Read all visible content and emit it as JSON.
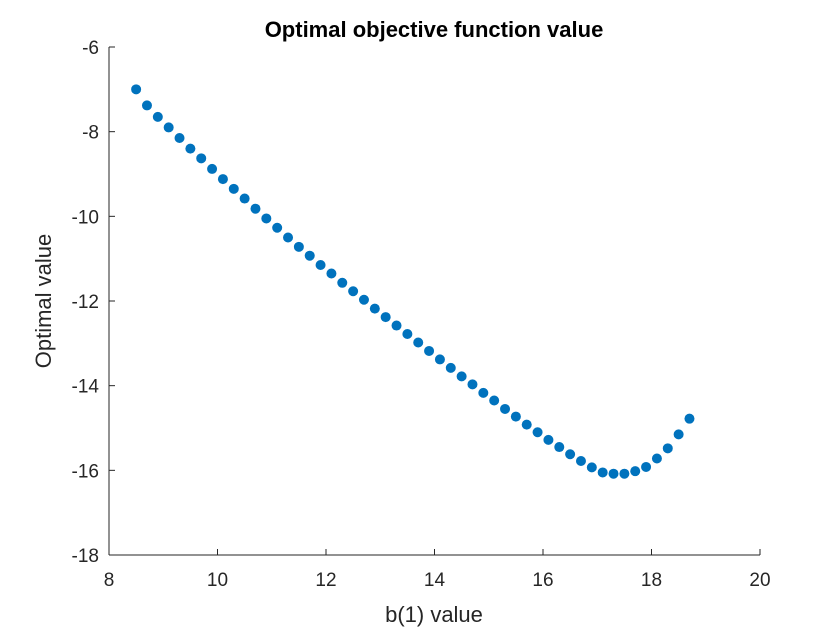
{
  "chart_data": {
    "type": "scatter",
    "title": "Optimal objective function value",
    "xlabel": "b(1) value",
    "ylabel": "Optimal value",
    "xlim": [
      8,
      20
    ],
    "ylim": [
      -18,
      -6
    ],
    "xticks": [
      "8",
      "10",
      "12",
      "14",
      "16",
      "18",
      "20"
    ],
    "yticks": [
      "-6",
      "-8",
      "-10",
      "-12",
      "-14",
      "-16",
      "-18"
    ],
    "grid": false,
    "marker_color": "#0072bd",
    "x": [
      8.5,
      8.7,
      8.9,
      9.1,
      9.3,
      9.5,
      9.7,
      9.9,
      10.1,
      10.3,
      10.5,
      10.7,
      10.9,
      11.1,
      11.3,
      11.5,
      11.7,
      11.9,
      12.1,
      12.3,
      12.5,
      12.7,
      12.9,
      13.1,
      13.3,
      13.5,
      13.7,
      13.9,
      14.1,
      14.3,
      14.5,
      14.7,
      14.9,
      15.1,
      15.3,
      15.5,
      15.7,
      15.9,
      16.1,
      16.3,
      16.5,
      16.7,
      16.9,
      17.1,
      17.3,
      17.5,
      17.7,
      17.9,
      18.1,
      18.3,
      18.5,
      18.7
    ],
    "y": [
      -7.0,
      -7.38,
      -7.65,
      -7.9,
      -8.15,
      -8.4,
      -8.63,
      -8.88,
      -9.12,
      -9.35,
      -9.58,
      -9.82,
      -10.05,
      -10.27,
      -10.5,
      -10.72,
      -10.93,
      -11.15,
      -11.35,
      -11.57,
      -11.77,
      -11.97,
      -12.18,
      -12.38,
      -12.58,
      -12.78,
      -12.98,
      -13.18,
      -13.38,
      -13.58,
      -13.78,
      -13.97,
      -14.17,
      -14.35,
      -14.55,
      -14.73,
      -14.92,
      -15.1,
      -15.28,
      -15.45,
      -15.62,
      -15.78,
      -15.93,
      -16.05,
      -16.08,
      -16.08,
      -16.02,
      -15.92,
      -15.72,
      -15.48,
      -15.15,
      -14.78
    ]
  }
}
